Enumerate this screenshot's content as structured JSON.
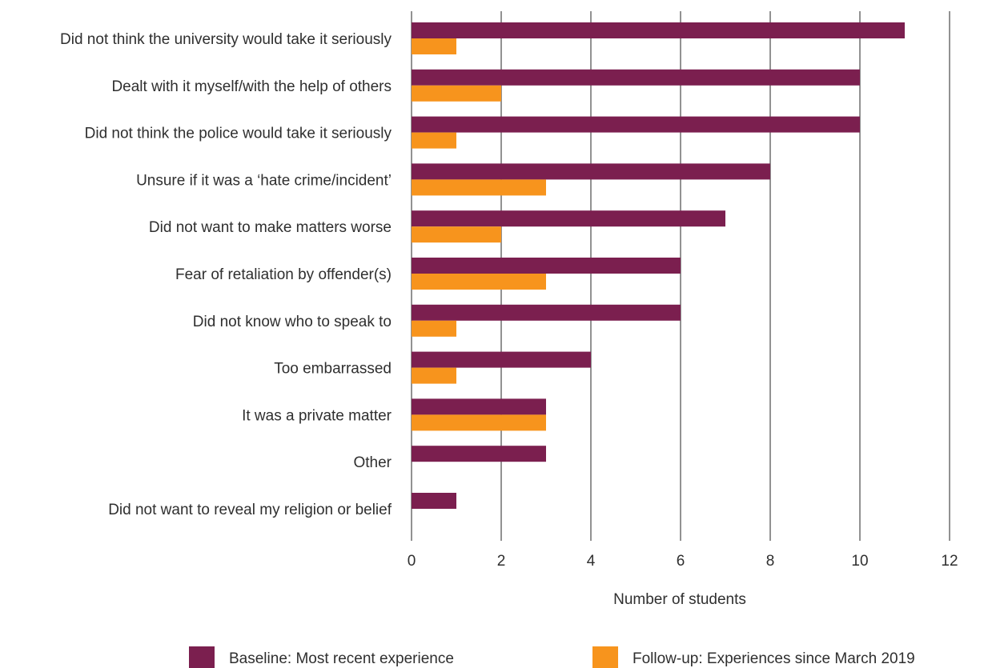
{
  "chart_data": {
    "type": "bar",
    "orientation": "horizontal",
    "categories": [
      "Did not think the university would take it seriously",
      "Dealt with it myself/with the help of others",
      "Did not think the police would take it seriously",
      "Unsure if it was a ‘hate crime/incident’",
      "Did not want to make matters worse",
      "Fear of retaliation by offender(s)",
      "Did not know who to speak to",
      "Too embarrassed",
      "It was a private matter",
      "Other",
      "Did not want to reveal my religion or belief"
    ],
    "series": [
      {
        "name": "Baseline: Most recent experience",
        "color": "#7b1f4f",
        "values": [
          11,
          10,
          10,
          8,
          7,
          6,
          6,
          4,
          3,
          3,
          1
        ]
      },
      {
        "name": "Follow-up: Experiences since March 2019",
        "color": "#f7941d",
        "values": [
          1,
          2,
          1,
          3,
          2,
          3,
          1,
          1,
          3,
          0,
          0
        ]
      }
    ],
    "xlabel": "Number of students",
    "xlim": [
      0,
      12
    ],
    "xticks": [
      "0",
      "2",
      "4",
      "6",
      "8",
      "10",
      "12"
    ],
    "grid": "vertical",
    "legend": "bottom"
  }
}
